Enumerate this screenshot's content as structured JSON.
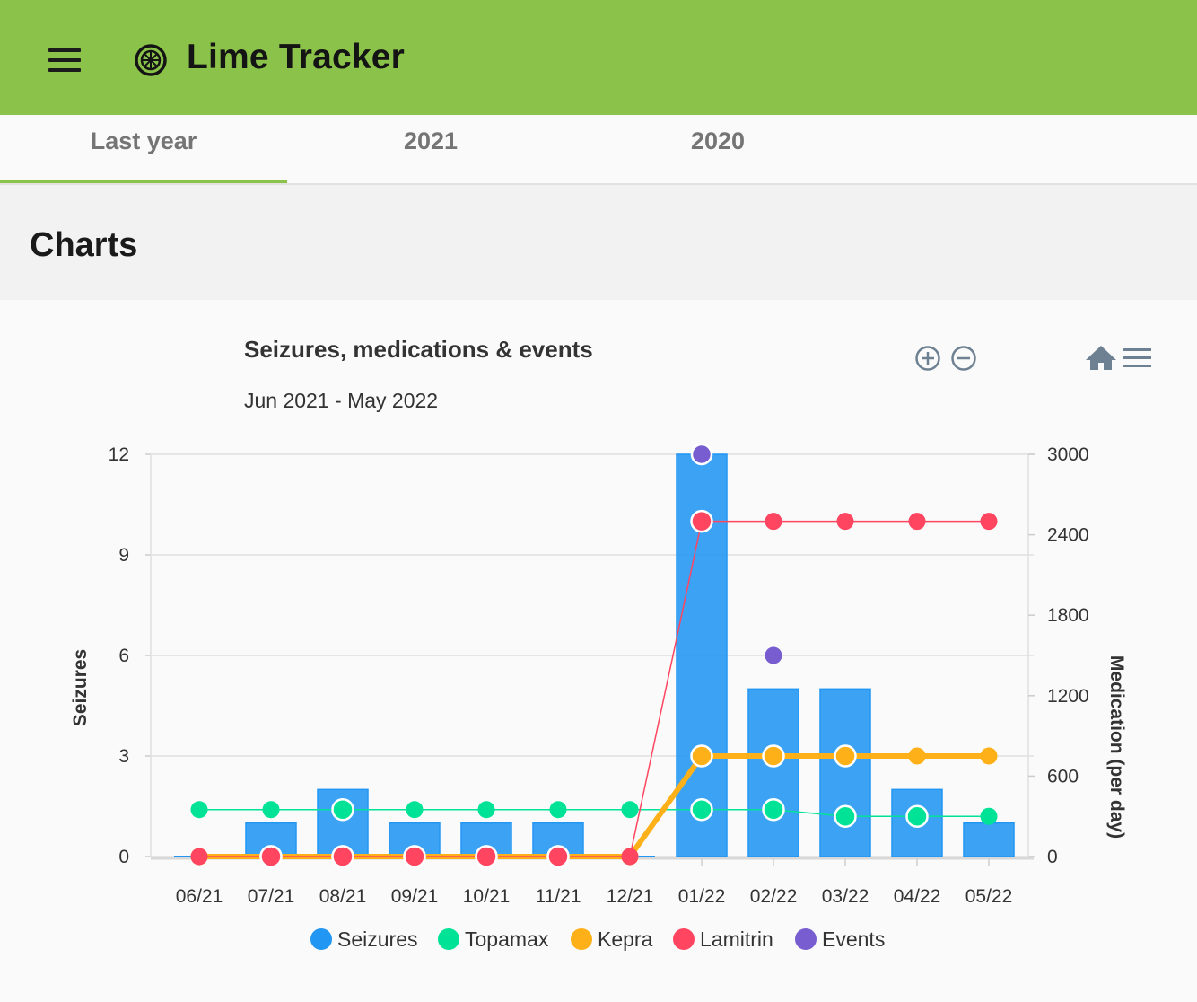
{
  "app": {
    "title": "Lime Tracker",
    "menu_icon": "hamburger-menu-icon",
    "logo_icon": "lime-slice-icon"
  },
  "tabs": [
    {
      "label": "Last year",
      "active": true
    },
    {
      "label": "2021",
      "active": false
    },
    {
      "label": "2020",
      "active": false
    }
  ],
  "section": {
    "title": "Charts"
  },
  "toolbar": {
    "icons": [
      "zoom-in-icon",
      "zoom-out-icon",
      "home-icon",
      "menu-icon"
    ]
  },
  "colors": {
    "appbar": "#8bc34a",
    "seizures": "#2196f3",
    "topamax": "#00e396",
    "kepra": "#feb019",
    "lamitrin": "#ff4560",
    "events": "#775dd0"
  },
  "chart_data": {
    "type": "bar",
    "title": "Seizures, medications & events",
    "subtitle": "Jun 2021 - May 2022",
    "categories": [
      "06/21",
      "07/21",
      "08/21",
      "09/21",
      "10/21",
      "11/21",
      "12/21",
      "01/22",
      "02/22",
      "03/22",
      "04/22",
      "05/22"
    ],
    "y_left": {
      "label": "Seizures",
      "min": 0,
      "max": 12,
      "ticks": [
        "0",
        "3",
        "6",
        "9",
        "12"
      ]
    },
    "y_right": {
      "label": "Medication (per day)",
      "min": 0,
      "max": 3000,
      "ticks": [
        "0",
        "600",
        "1200",
        "1800",
        "2400",
        "3000"
      ]
    },
    "series": [
      {
        "name": "Seizures",
        "type": "bar",
        "axis": "left",
        "values": [
          0,
          1,
          2,
          1,
          1,
          1,
          0,
          12,
          5,
          5,
          2,
          1
        ]
      },
      {
        "name": "Topamax",
        "type": "line",
        "axis": "right",
        "values": [
          350,
          350,
          350,
          350,
          350,
          350,
          350,
          350,
          350,
          300,
          300,
          300
        ]
      },
      {
        "name": "Kepra",
        "type": "line",
        "axis": "right",
        "values": [
          0,
          0,
          0,
          0,
          0,
          0,
          0,
          750,
          750,
          750,
          750,
          750
        ]
      },
      {
        "name": "Lamitrin",
        "type": "line",
        "axis": "right",
        "values": [
          0,
          0,
          0,
          0,
          0,
          0,
          0,
          2500,
          2500,
          2500,
          2500,
          2500
        ]
      },
      {
        "name": "Events",
        "type": "scatter",
        "axis": "left",
        "values": [
          null,
          null,
          null,
          null,
          null,
          null,
          null,
          12,
          6,
          null,
          null,
          null
        ]
      }
    ],
    "legend": {
      "position": "bottom",
      "items": [
        "Seizures",
        "Topamax",
        "Kepra",
        "Lamitrin",
        "Events"
      ]
    },
    "grid": true
  }
}
